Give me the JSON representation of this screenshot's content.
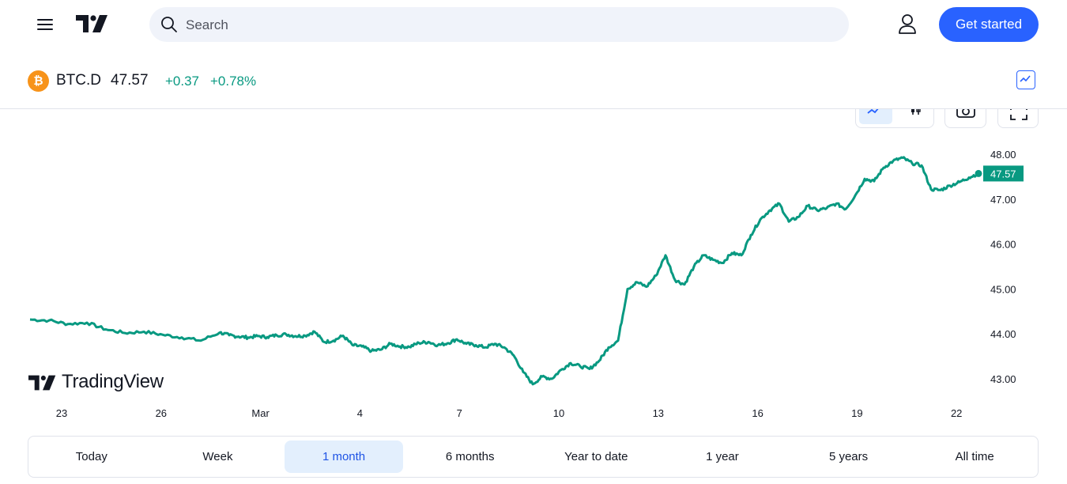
{
  "header": {
    "search_placeholder": "Search",
    "cta_label": "Get started"
  },
  "symbol": {
    "name": "BTC.D",
    "coin_glyph": "₿",
    "price": "47.57",
    "change": "+0.37",
    "change_pct": "+0.78%",
    "change_color": "#089981"
  },
  "watermark": {
    "text": "TradingView"
  },
  "chart_data": {
    "type": "line",
    "series": [
      {
        "line_color": "#089981",
        "x": [
          0,
          2,
          4,
          6,
          8,
          10,
          12,
          14,
          16,
          18,
          20,
          21,
          22,
          23,
          24,
          25,
          26,
          27,
          28,
          29,
          30,
          31,
          32,
          33,
          34,
          35,
          36,
          37,
          38,
          39,
          40,
          41,
          42,
          43,
          44,
          45,
          46,
          47,
          48,
          49,
          50,
          51,
          52,
          53,
          54,
          55,
          56,
          57,
          58,
          59,
          60,
          61,
          62,
          63,
          64,
          65,
          66,
          67,
          68,
          69,
          70,
          71,
          72,
          73,
          74,
          75,
          76,
          77,
          78,
          79,
          80,
          81,
          82,
          83,
          84,
          85,
          86,
          87,
          88,
          89,
          90,
          91,
          92,
          93,
          94,
          95,
          96,
          97,
          98,
          99,
          100
        ],
        "y": [
          44.32,
          44.3,
          44.22,
          44.25,
          44.1,
          44.02,
          44.05,
          43.98,
          43.92,
          43.85,
          44.03,
          43.97,
          43.94,
          43.92,
          43.95,
          43.93,
          43.97,
          43.99,
          43.95,
          43.96,
          44.05,
          43.82,
          43.85,
          43.96,
          43.75,
          43.72,
          43.62,
          43.65,
          43.78,
          43.72,
          43.71,
          43.8,
          43.82,
          43.75,
          43.79,
          43.88,
          43.78,
          43.75,
          43.7,
          43.78,
          43.7,
          43.52,
          43.15,
          42.88,
          43.05,
          43.0,
          43.2,
          43.35,
          43.28,
          43.22,
          43.4,
          43.7,
          43.85,
          45.0,
          45.15,
          45.05,
          45.3,
          45.75,
          45.2,
          45.1,
          45.5,
          45.75,
          45.65,
          45.58,
          45.8,
          45.75,
          46.2,
          46.55,
          46.75,
          46.9,
          46.5,
          46.6,
          46.85,
          46.75,
          46.8,
          46.9,
          46.78,
          47.08,
          47.45,
          47.4,
          47.7,
          47.85,
          47.92,
          47.8,
          47.75,
          47.22,
          47.2,
          47.3,
          47.38,
          47.48,
          47.57
        ],
        "last_value": "47.57"
      }
    ],
    "ylim": [
      42.66,
      48.3
    ],
    "y_ticks": [
      "48.00",
      "47.00",
      "46.00",
      "45.00",
      "44.00",
      "43.00"
    ],
    "x_ticks": [
      "23",
      "26",
      "Mar",
      "4",
      "7",
      "10",
      "13",
      "16",
      "19",
      "22"
    ],
    "grid": false,
    "toolbar_icons": [
      "line-chart-icon",
      "candlestick-icon",
      "camera-icon",
      "fullscreen-icon"
    ]
  },
  "ranges": [
    "Today",
    "Week",
    "1 month",
    "6 months",
    "Year to date",
    "1 year",
    "5 years",
    "All time"
  ],
  "active_range": "1 month"
}
